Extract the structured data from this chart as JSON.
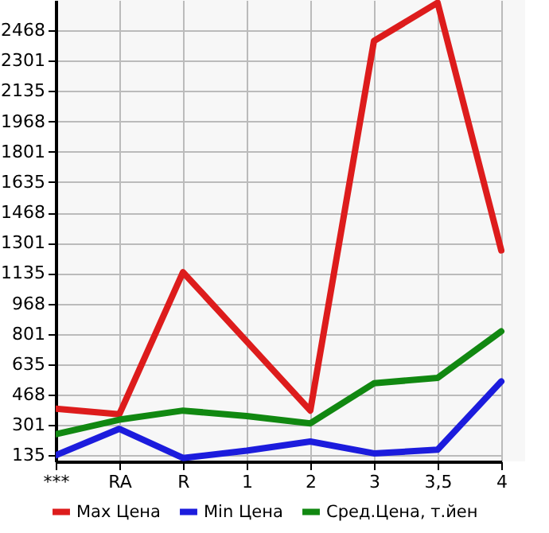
{
  "chart_data": {
    "type": "line",
    "categories": [
      "***",
      "RA",
      "R",
      "1",
      "2",
      "3",
      "3,5",
      "4"
    ],
    "series": [
      {
        "name": "Max Цена",
        "color": "#dd1c1c",
        "values": [
          390,
          360,
          1140,
          760,
          380,
          2410,
          2620,
          1260
        ]
      },
      {
        "name": "Min Цена",
        "color": "#1c1cdd",
        "values": [
          135,
          280,
          120,
          160,
          210,
          145,
          165,
          540
        ]
      },
      {
        "name": "Сред.Цена, т.йен",
        "color": "#118811",
        "values": [
          250,
          330,
          380,
          350,
          310,
          530,
          560,
          815
        ]
      }
    ],
    "ylim": [
      101,
      2635
    ],
    "yticks": [
      135,
      301,
      468,
      635,
      801,
      968,
      1135,
      1301,
      1468,
      1635,
      1801,
      1968,
      2135,
      2301,
      2468
    ],
    "grid": true,
    "legend": "bottom",
    "marker": "none",
    "line_style": "solid"
  }
}
